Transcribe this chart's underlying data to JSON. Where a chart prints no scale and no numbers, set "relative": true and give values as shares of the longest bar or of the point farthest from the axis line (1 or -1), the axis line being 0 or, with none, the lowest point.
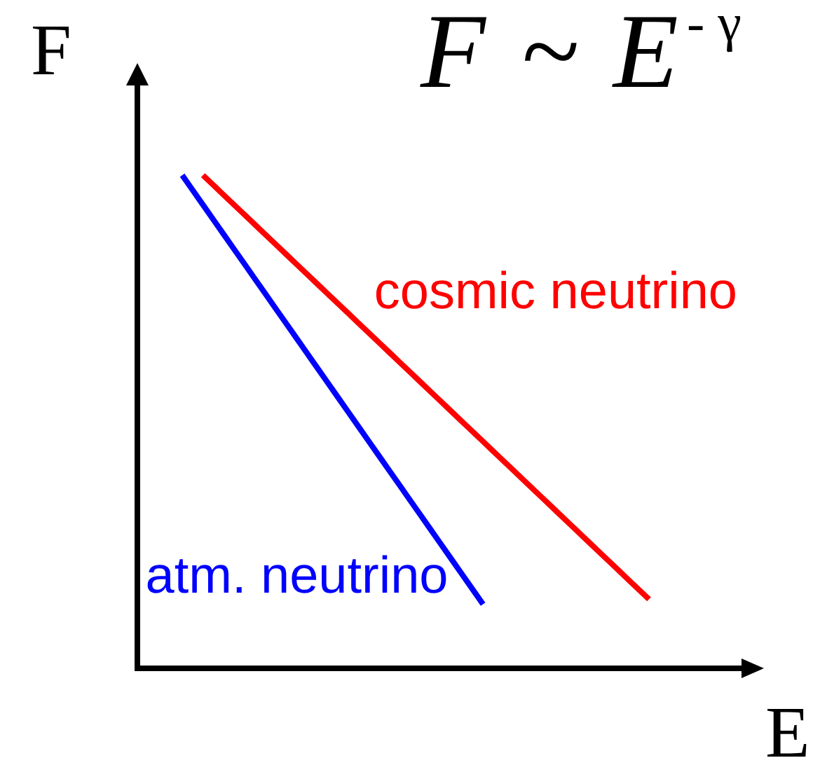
{
  "chart_data": {
    "type": "line",
    "title": "F ~ E$^{- γ}$",
    "xlabel": "E",
    "ylabel": "F",
    "relative": true,
    "marker": "none",
    "line_style": "solid",
    "categories": [
      null,
      null,
      null,
      null,
      null,
      null,
      null,
      null,
      null,
      null,
      null,
      null,
      null,
      null,
      null,
      null,
      null,
      null,
      null,
      null,
      null,
      null,
      null,
      null,
      null,
      null,
      null,
      null,
      null,
      null,
      null,
      null,
      null,
      null,
      null,
      null,
      null,
      null,
      null,
      null,
      null,
      null,
      null,
      null,
      null,
      null
    ],
    "series": [
      {
        "name": "cosmic neutrino",
        "color": "#ff0000",
        "values": [
          null,
          null,
          1,
          0.98,
          0.96,
          0.94,
          0.92,
          0.9,
          0.88,
          0.86,
          0.84,
          0.82,
          0.8,
          0.78,
          0.76,
          0.74,
          0.72,
          0.7,
          0.68,
          0.66,
          0.64,
          0.62,
          0.6,
          0.58,
          0.56,
          0.54,
          0.52,
          0.5,
          0.48,
          0.46,
          0.44,
          0.42,
          0.4,
          0.38,
          0.36,
          0.34,
          0.32,
          0.3,
          0.28,
          0.26,
          0.24,
          0.22,
          0.2,
          0.18,
          0.16,
          0.14
        ]
      },
      {
        "name": "atm. neutrino",
        "color": "#0000ff",
        "values": [
          1,
          0.97,
          0.94,
          0.91,
          0.88,
          0.85,
          0.82,
          0.79,
          0.76,
          0.73,
          0.7,
          0.67,
          0.64,
          0.61,
          0.58,
          0.55,
          0.52,
          0.49,
          0.46,
          0.43,
          0.4,
          0.37,
          0.34,
          0.31,
          0.28,
          0.25,
          0.22,
          0.19,
          0.16,
          0.13,
          null,
          null,
          null,
          null,
          null,
          null,
          null,
          null,
          null,
          null,
          null,
          null,
          null,
          null,
          null,
          null
        ]
      }
    ]
  }
}
